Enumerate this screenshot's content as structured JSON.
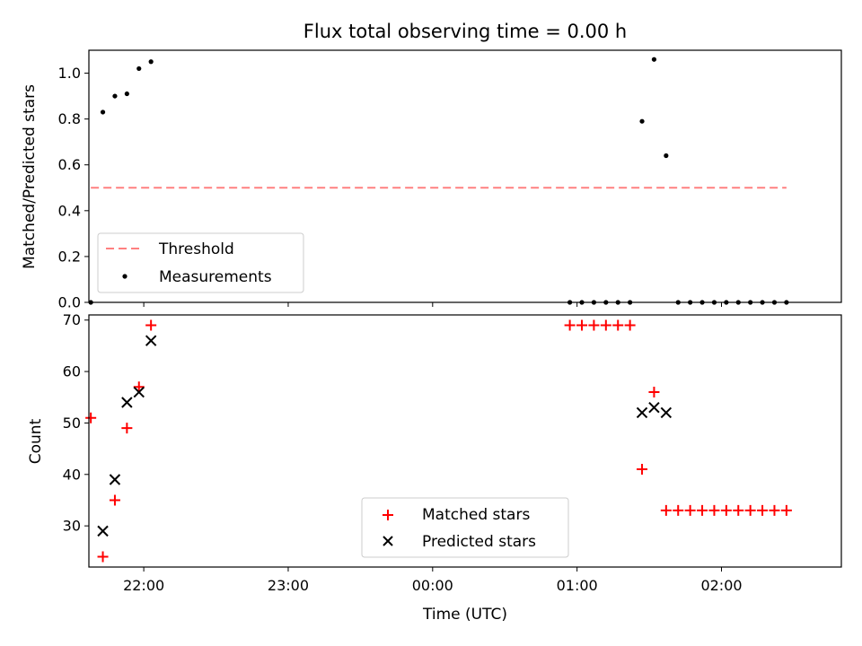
{
  "chart_data": [
    {
      "type": "scatter",
      "title": "Flux total observing time = 0.00 h",
      "xlabel": "",
      "ylabel": "Matched/Predicted stars",
      "ylim": [
        0,
        1.1
      ],
      "yticks": [
        "0.0",
        "0.2",
        "0.4",
        "0.6",
        "0.8",
        "1.0"
      ],
      "xlim_hours": [
        21.62,
        26.83
      ],
      "legend_position": "lower-left",
      "grid": false,
      "threshold": {
        "name": "Threshold",
        "value": 0.5,
        "x_start": "21:38",
        "x_end": "02:27",
        "color": "#ff8080",
        "style": "dashed"
      },
      "series": [
        {
          "name": "Measurements",
          "marker": "dot",
          "color": "#000000",
          "x": [
            "21:38",
            "21:43",
            "21:48",
            "21:53",
            "21:58",
            "22:03",
            "00:57",
            "01:02",
            "01:07",
            "01:12",
            "01:17",
            "01:22",
            "01:27",
            "01:32",
            "01:37",
            "01:42",
            "01:47",
            "01:52",
            "01:57",
            "02:02",
            "02:07",
            "02:12",
            "02:17",
            "02:22",
            "02:27"
          ],
          "y": [
            0.0,
            0.83,
            0.9,
            0.91,
            1.02,
            1.05,
            0.0,
            0.0,
            0.0,
            0.0,
            0.0,
            0.0,
            0.79,
            1.06,
            0.64,
            0.0,
            0.0,
            0.0,
            0.0,
            0.0,
            0.0,
            0.0,
            0.0,
            0.0,
            0.0
          ]
        }
      ]
    },
    {
      "type": "scatter",
      "title": "",
      "xlabel": "Time (UTC)",
      "ylabel": "Count",
      "ylim": [
        22,
        71
      ],
      "yticks": [
        "30",
        "40",
        "50",
        "60",
        "70"
      ],
      "xticks": [
        "22:00",
        "23:00",
        "00:00",
        "01:00",
        "02:00"
      ],
      "xlim_hours": [
        21.62,
        26.83
      ],
      "legend_position": "lower-center",
      "grid": false,
      "series": [
        {
          "name": "Matched stars",
          "marker": "plus",
          "color": "#ff0000",
          "x": [
            "21:38",
            "21:43",
            "21:48",
            "21:53",
            "21:58",
            "22:03",
            "00:57",
            "01:02",
            "01:07",
            "01:12",
            "01:17",
            "01:22",
            "01:27",
            "01:32",
            "01:37",
            "01:42",
            "01:47",
            "01:52",
            "01:57",
            "02:02",
            "02:07",
            "02:12",
            "02:17",
            "02:22",
            "02:27"
          ],
          "y": [
            51,
            24,
            35,
            49,
            57,
            69,
            69,
            69,
            69,
            69,
            69,
            69,
            41,
            56,
            33,
            33,
            33,
            33,
            33,
            33,
            33,
            33,
            33,
            33,
            33
          ]
        },
        {
          "name": "Predicted stars",
          "marker": "x",
          "color": "#000000",
          "x": [
            "21:43",
            "21:48",
            "21:53",
            "21:58",
            "22:03",
            "01:27",
            "01:32",
            "01:37"
          ],
          "y": [
            29,
            39,
            54,
            56,
            66,
            52,
            53,
            52
          ]
        }
      ]
    }
  ]
}
